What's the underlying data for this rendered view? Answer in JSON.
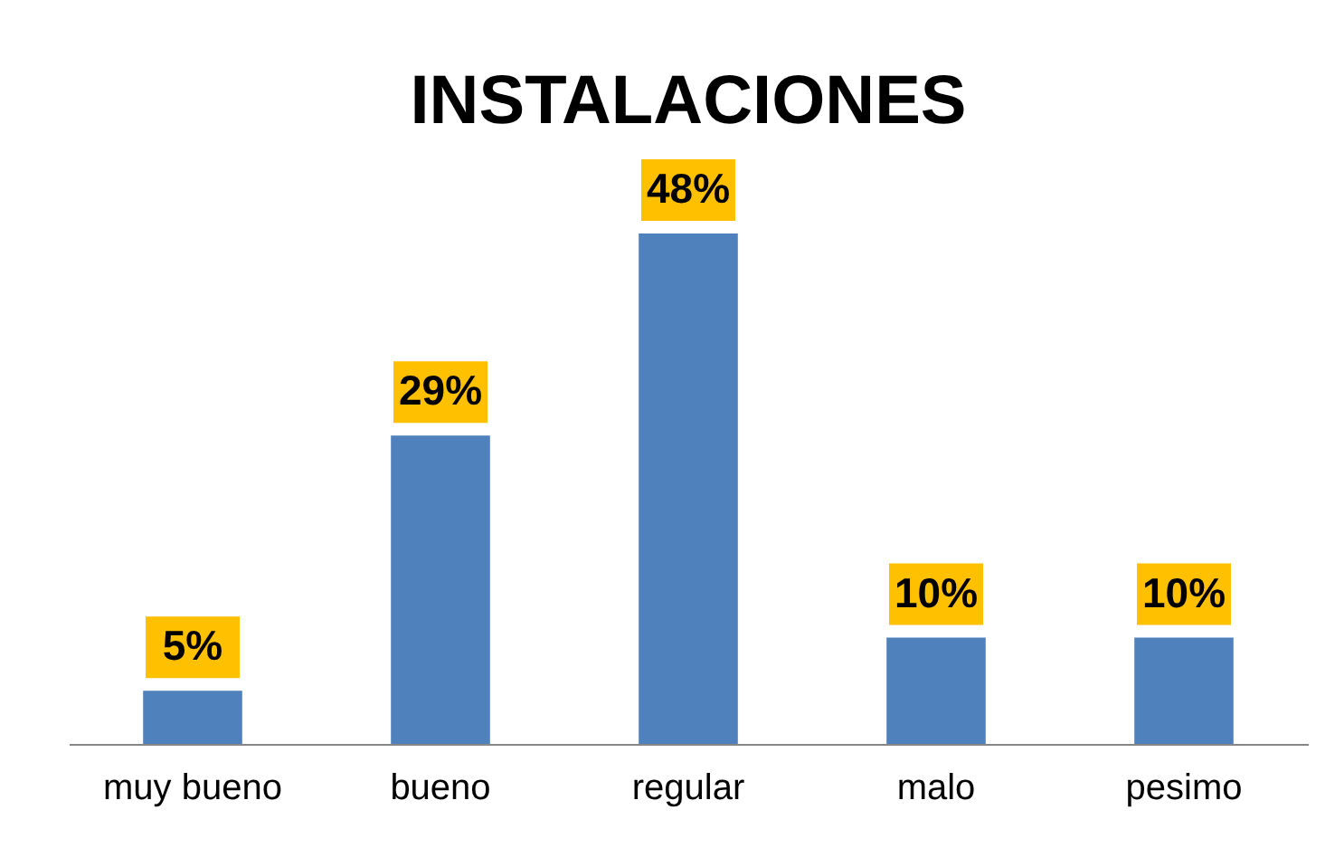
{
  "chart_data": {
    "type": "bar",
    "title": "INSTALACIONES",
    "categories": [
      "muy bueno",
      "bueno",
      "regular",
      "malo",
      "pesimo"
    ],
    "values": [
      5,
      29,
      48,
      10,
      10
    ],
    "value_labels": [
      "5%",
      "29%",
      "48%",
      "10%",
      "10%"
    ],
    "color": "#4f81bd",
    "grid": false
  }
}
